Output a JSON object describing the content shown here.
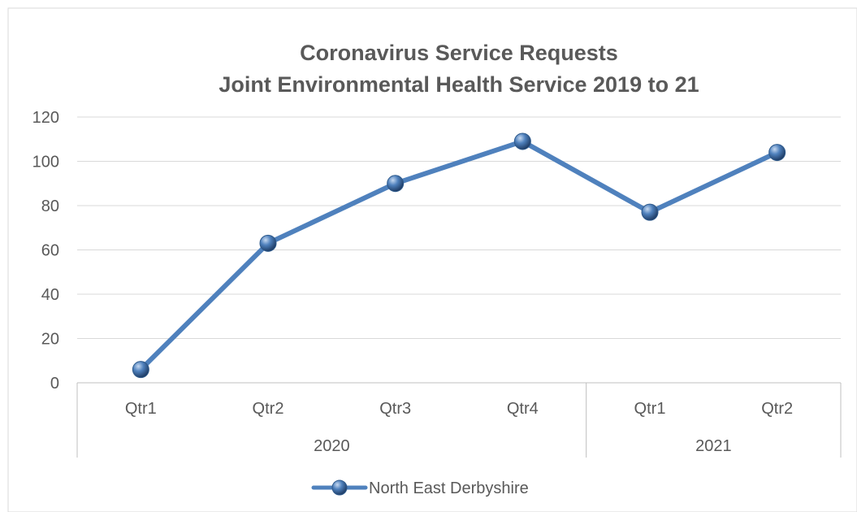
{
  "chart_data": {
    "type": "line",
    "title_lines": [
      "Coronavirus Service Requests",
      "Joint Environmental Health Service 2019 to 21"
    ],
    "categories": [
      "Qtr1",
      "Qtr2",
      "Qtr3",
      "Qtr4",
      "Qtr1",
      "Qtr2"
    ],
    "category_groups": [
      {
        "label": "2020",
        "count": 4
      },
      {
        "label": "2021",
        "count": 2
      }
    ],
    "series": [
      {
        "name": "North East Derbyshire",
        "values": [
          6,
          63,
          90,
          109,
          77,
          104
        ],
        "color": "#4f81bd"
      }
    ],
    "ylim": [
      0,
      120
    ],
    "yticks": [
      0,
      20,
      40,
      60,
      80,
      100,
      120
    ],
    "grid": true,
    "legend_position": "bottom"
  }
}
